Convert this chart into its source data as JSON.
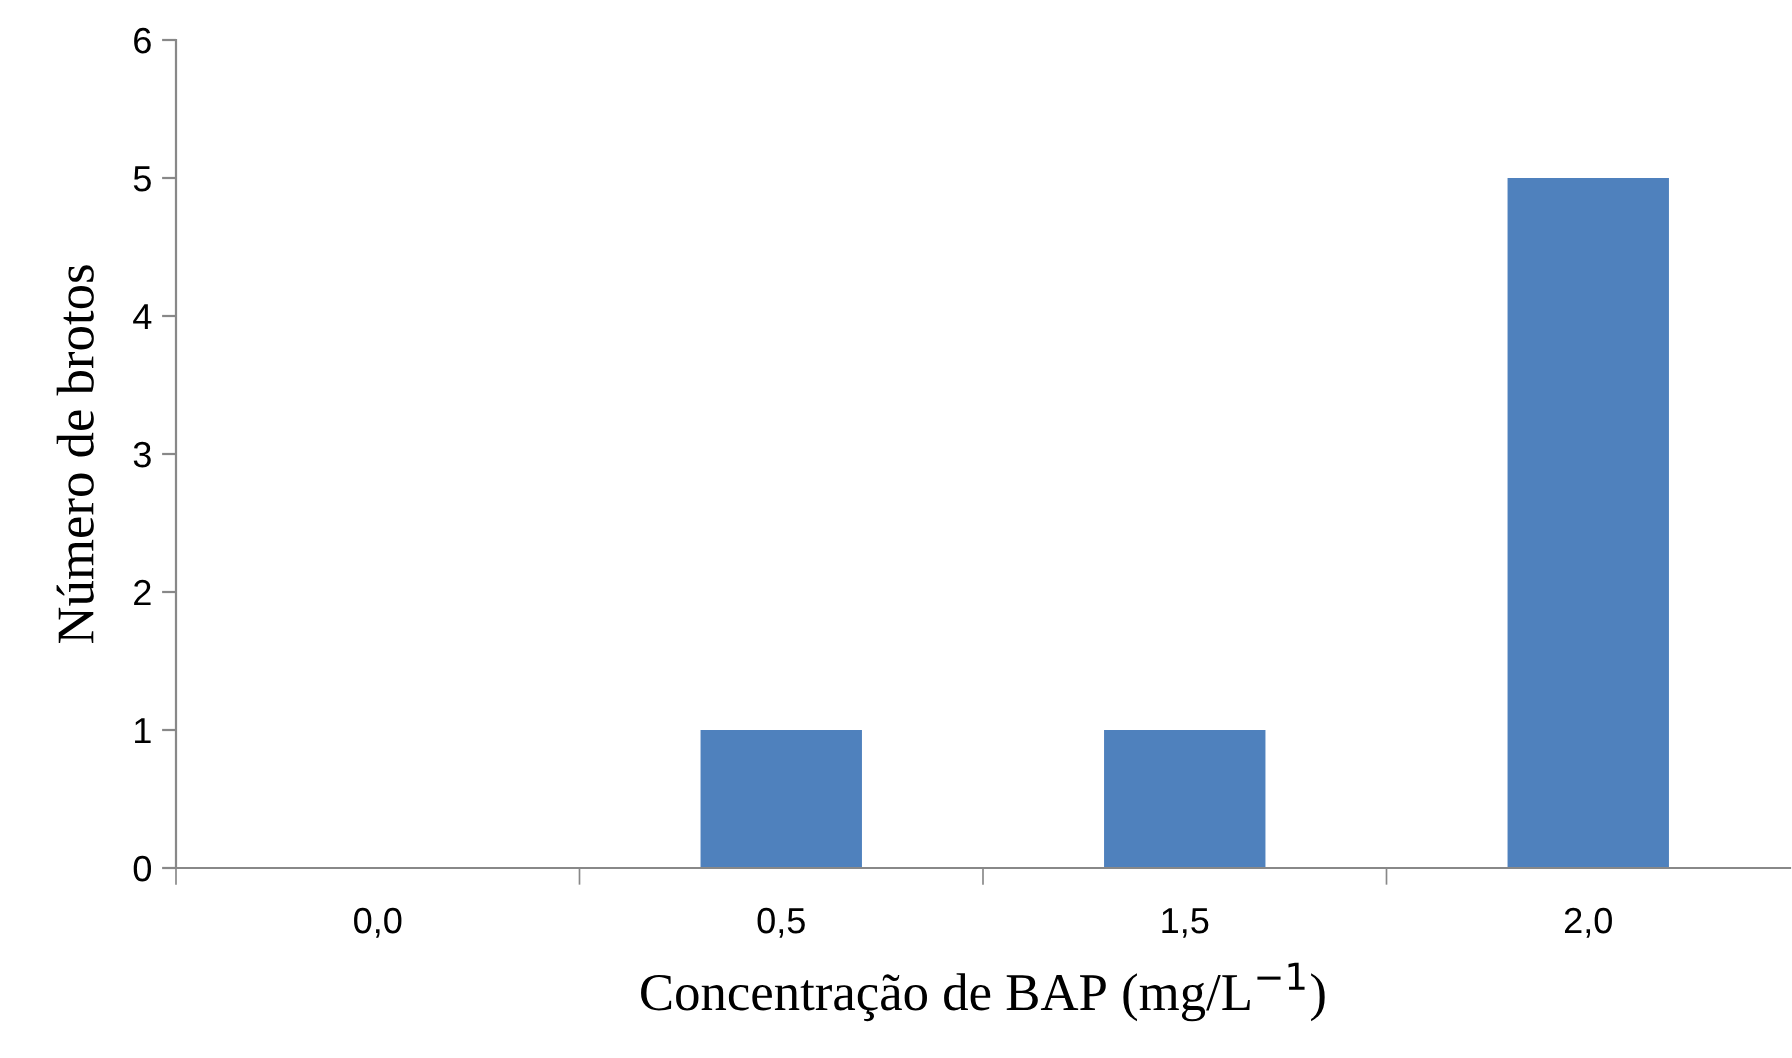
{
  "chart_data": {
    "type": "bar",
    "xlabel": "Concentração de BAP (mg/L$^{−1}$)",
    "ylabel": "Número de brotos",
    "categories": [
      "0,0",
      "0,5",
      "1,5",
      "2,0"
    ],
    "values": [
      0,
      1,
      1,
      5
    ],
    "color": "#4f81bd",
    "ylim": [
      0,
      6
    ],
    "yticks": [
      0,
      1,
      2,
      3,
      4,
      5,
      6
    ],
    "grid": false,
    "legend": false
  }
}
